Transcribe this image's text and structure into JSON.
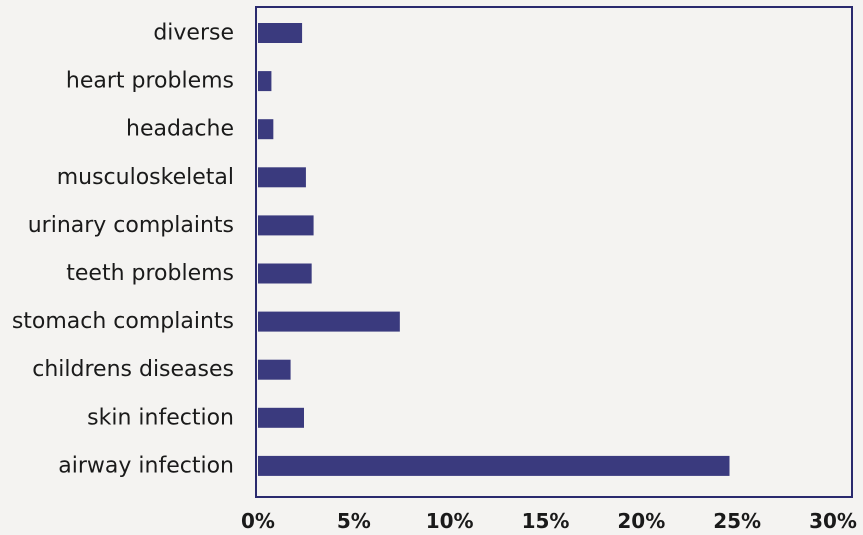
{
  "chart_data": {
    "type": "bar",
    "orientation": "horizontal",
    "categories": [
      "diverse",
      "heart problems",
      "headache",
      "musculoskeletal",
      "urinary complaints",
      "teeth problems",
      "stomach complaints",
      "childrens diseases",
      "skin infection",
      "airway infection"
    ],
    "values": [
      2.3,
      0.7,
      0.8,
      2.5,
      2.9,
      2.8,
      7.4,
      1.7,
      2.4,
      24.6
    ],
    "x_ticks": [
      "0%",
      "5%",
      "10%",
      "15%",
      "20%",
      "25%",
      "30%"
    ],
    "xlim": [
      0,
      30
    ],
    "unit": "%",
    "bar_color": "#3a3a7e",
    "frame_color": "#2a2a6e",
    "grid": false,
    "legend": "none",
    "title": "",
    "xlabel": "",
    "ylabel": ""
  }
}
